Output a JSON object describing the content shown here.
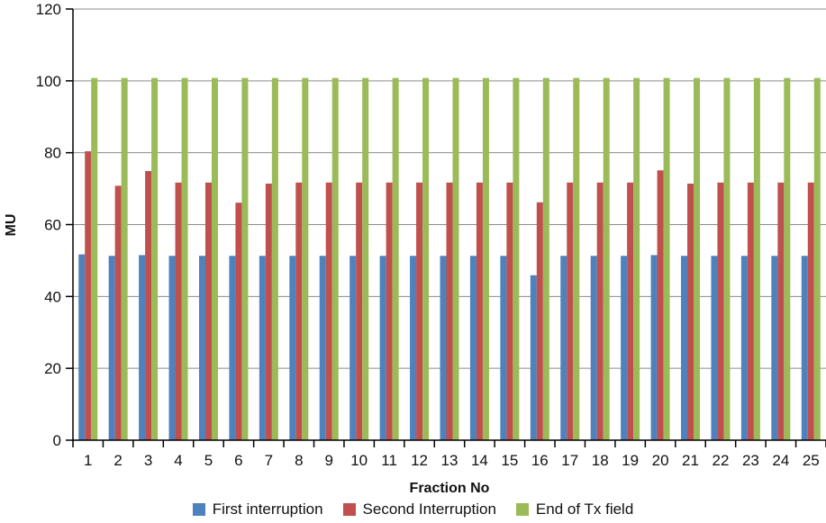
{
  "chart_data": {
    "type": "bar",
    "title": "",
    "xlabel": "Fraction No",
    "ylabel": "MU",
    "ylim": [
      0,
      120
    ],
    "yticks": [
      0,
      20,
      40,
      60,
      80,
      100,
      120
    ],
    "grid": true,
    "legend_position": "bottom",
    "categories": [
      "1",
      "2",
      "3",
      "4",
      "5",
      "6",
      "7",
      "8",
      "9",
      "10",
      "11",
      "12",
      "13",
      "14",
      "15",
      "16",
      "17",
      "18",
      "19",
      "20",
      "21",
      "22",
      "23",
      "24",
      "25"
    ],
    "series": [
      {
        "name": "First interruption",
        "color": "#4F81BD",
        "values": [
          51.7,
          51.3,
          51.5,
          51.3,
          51.3,
          51.3,
          51.3,
          51.3,
          51.3,
          51.3,
          51.3,
          51.3,
          51.3,
          51.3,
          51.3,
          45.9,
          51.3,
          51.3,
          51.3,
          51.5,
          51.3,
          51.3,
          51.3,
          51.3,
          51.3
        ]
      },
      {
        "name": "Second Interruption",
        "color": "#C0504D",
        "values": [
          80.4,
          70.8,
          74.9,
          71.7,
          71.7,
          66.1,
          71.4,
          71.7,
          71.7,
          71.7,
          71.7,
          71.7,
          71.7,
          71.7,
          71.7,
          66.2,
          71.7,
          71.7,
          71.7,
          75.1,
          71.4,
          71.7,
          71.7,
          71.7,
          71.7
        ]
      },
      {
        "name": "End of Tx field",
        "color": "#9BBB59",
        "values": [
          100.8,
          100.8,
          100.8,
          100.8,
          100.8,
          100.8,
          100.8,
          100.8,
          100.8,
          100.8,
          100.8,
          100.8,
          100.8,
          100.8,
          100.8,
          100.8,
          100.8,
          100.8,
          100.8,
          100.8,
          100.8,
          100.8,
          100.8,
          100.8,
          100.8
        ]
      }
    ]
  }
}
